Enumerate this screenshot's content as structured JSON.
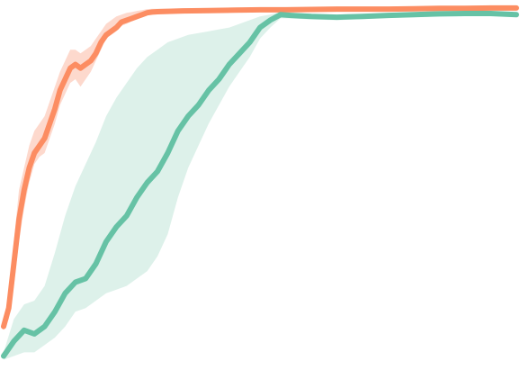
{
  "chart_data": {
    "type": "line",
    "title": "",
    "xlabel": "",
    "ylabel": "",
    "grid": false,
    "legend": "none",
    "xlim": [
      0,
      100
    ],
    "ylim": [
      0,
      1
    ],
    "series": [
      {
        "color": "#fc8d62",
        "band_color": "#fdd0c0",
        "x": [
          0,
          1,
          2,
          3,
          4,
          5,
          6,
          7,
          8,
          9,
          10,
          11,
          12,
          13,
          14,
          15,
          16,
          17,
          18,
          19,
          20,
          21,
          22,
          23,
          24,
          25,
          26,
          27,
          28,
          29,
          30,
          35,
          40,
          45,
          50,
          55,
          60,
          65,
          70,
          75,
          80,
          85,
          90,
          95,
          100
        ],
        "mean": [
          0.13,
          0.18,
          0.3,
          0.42,
          0.5,
          0.56,
          0.6,
          0.62,
          0.64,
          0.68,
          0.72,
          0.77,
          0.8,
          0.83,
          0.84,
          0.83,
          0.84,
          0.85,
          0.87,
          0.9,
          0.92,
          0.93,
          0.94,
          0.955,
          0.96,
          0.965,
          0.97,
          0.975,
          0.98,
          0.982,
          0.983,
          0.985,
          0.986,
          0.987,
          0.988,
          0.988,
          0.989,
          0.99,
          0.99,
          0.99,
          0.991,
          0.992,
          0.992,
          0.993,
          0.993
        ],
        "lower": [
          0.12,
          0.15,
          0.24,
          0.36,
          0.45,
          0.52,
          0.57,
          0.59,
          0.6,
          0.64,
          0.68,
          0.73,
          0.76,
          0.79,
          0.8,
          0.78,
          0.8,
          0.82,
          0.85,
          0.88,
          0.91,
          0.92,
          0.93,
          0.945,
          0.95,
          0.957,
          0.962,
          0.968,
          0.973,
          0.976,
          0.978,
          0.98,
          0.982,
          0.983,
          0.984,
          0.984,
          0.985,
          0.986,
          0.986,
          0.986,
          0.987,
          0.988,
          0.988,
          0.989,
          0.989
        ],
        "upper": [
          0.14,
          0.22,
          0.36,
          0.5,
          0.56,
          0.62,
          0.66,
          0.68,
          0.7,
          0.74,
          0.78,
          0.82,
          0.85,
          0.88,
          0.88,
          0.87,
          0.88,
          0.89,
          0.91,
          0.93,
          0.95,
          0.96,
          0.97,
          0.975,
          0.98,
          0.982,
          0.985,
          0.987,
          0.99,
          0.991,
          0.991,
          0.992,
          0.992,
          0.993,
          0.994,
          0.994,
          0.994,
          0.995,
          0.995,
          0.995,
          0.995,
          0.996,
          0.996,
          0.996,
          0.996
        ]
      },
      {
        "color": "#66c2a5",
        "band_color": "#d5eee5",
        "x": [
          0,
          2,
          4,
          6,
          8,
          10,
          12,
          14,
          16,
          18,
          20,
          22,
          24,
          26,
          28,
          30,
          32,
          34,
          36,
          38,
          40,
          42,
          44,
          46,
          48,
          50,
          52,
          54,
          56,
          60,
          65,
          70,
          75,
          80,
          85,
          90,
          95,
          100
        ],
        "mean": [
          0.05,
          0.09,
          0.12,
          0.11,
          0.13,
          0.17,
          0.22,
          0.25,
          0.26,
          0.3,
          0.36,
          0.4,
          0.43,
          0.48,
          0.52,
          0.55,
          0.6,
          0.66,
          0.7,
          0.73,
          0.77,
          0.8,
          0.84,
          0.87,
          0.9,
          0.94,
          0.96,
          0.975,
          0.973,
          0.97,
          0.968,
          0.97,
          0.973,
          0.975,
          0.977,
          0.978,
          0.978,
          0.975
        ],
        "lower": [
          0.04,
          0.05,
          0.06,
          0.06,
          0.08,
          0.1,
          0.13,
          0.17,
          0.18,
          0.2,
          0.22,
          0.23,
          0.24,
          0.26,
          0.28,
          0.32,
          0.38,
          0.48,
          0.56,
          0.62,
          0.68,
          0.73,
          0.78,
          0.82,
          0.86,
          0.91,
          0.94,
          0.965,
          0.965,
          0.962,
          0.96,
          0.963,
          0.966,
          0.968,
          0.97,
          0.972,
          0.972,
          0.969
        ],
        "upper": [
          0.06,
          0.15,
          0.19,
          0.2,
          0.24,
          0.33,
          0.43,
          0.51,
          0.57,
          0.63,
          0.7,
          0.75,
          0.79,
          0.83,
          0.86,
          0.88,
          0.9,
          0.91,
          0.92,
          0.925,
          0.93,
          0.935,
          0.94,
          0.95,
          0.96,
          0.97,
          0.975,
          0.982,
          0.98,
          0.977,
          0.975,
          0.977,
          0.979,
          0.981,
          0.983,
          0.984,
          0.984,
          0.981
        ]
      }
    ]
  }
}
